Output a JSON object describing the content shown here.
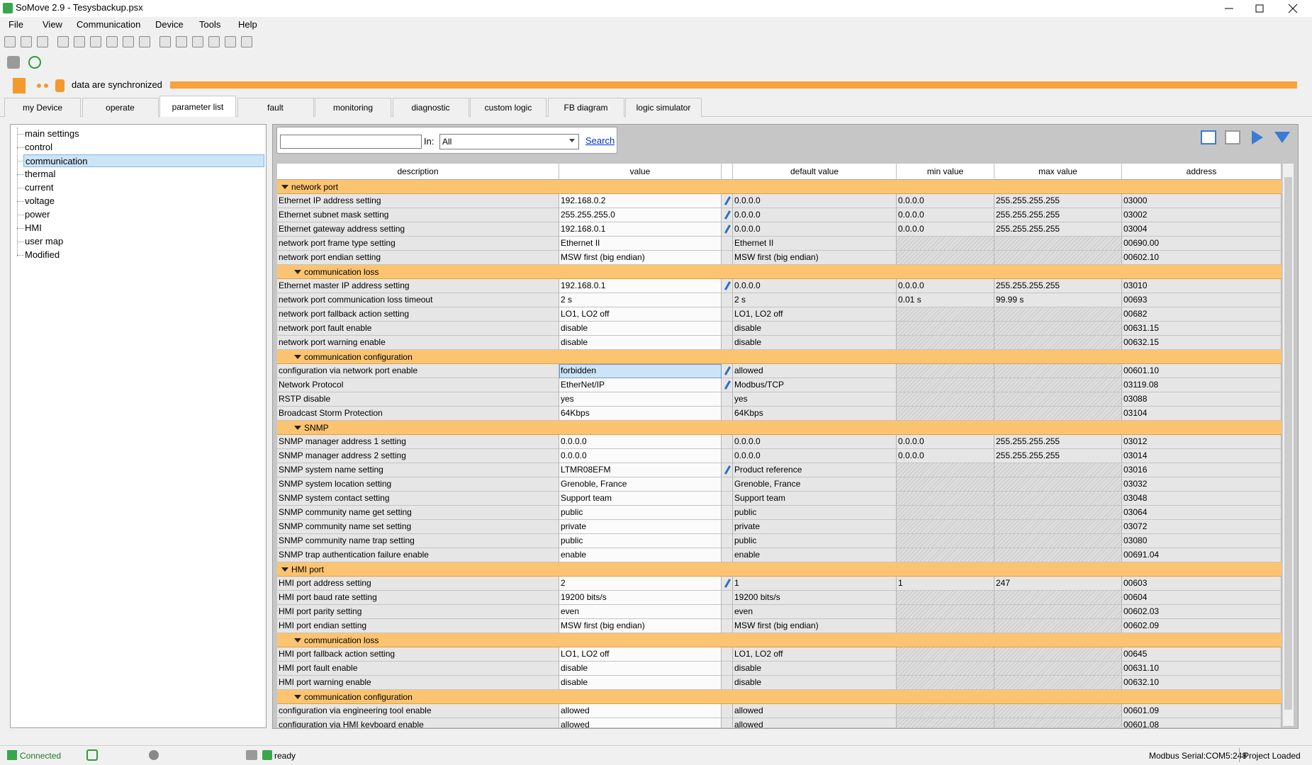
{
  "window": {
    "title": "SoMove 2.9 - Tesysbackup.psx"
  },
  "menu": [
    "File",
    "View",
    "Communication",
    "Device",
    "Tools",
    "Help"
  ],
  "sync": {
    "text": "data are synchronized"
  },
  "tabs": [
    {
      "label": "my Device"
    },
    {
      "label": "operate"
    },
    {
      "label": "parameter list",
      "selected": true
    },
    {
      "label": "fault"
    },
    {
      "label": "monitoring"
    },
    {
      "label": "diagnostic"
    },
    {
      "label": "custom logic"
    },
    {
      "label": "FB diagram"
    },
    {
      "label": "logic simulator"
    }
  ],
  "tree": [
    {
      "label": "main settings"
    },
    {
      "label": "control"
    },
    {
      "label": "communication",
      "selected": true
    },
    {
      "label": "thermal"
    },
    {
      "label": "current"
    },
    {
      "label": "voltage"
    },
    {
      "label": "power"
    },
    {
      "label": "HMI"
    },
    {
      "label": "user map"
    },
    {
      "label": "Modified"
    }
  ],
  "search": {
    "in_label": "In:",
    "in_value": "All",
    "button": "Search"
  },
  "table": {
    "columns": [
      "description",
      "value",
      "default value",
      "min value",
      "max value",
      "address"
    ],
    "rows": [
      {
        "group": "network port",
        "level": 0
      },
      {
        "cells": [
          "Ethernet IP address setting",
          "192.168.0.2",
          "0.0.0.0",
          "0.0.0.0",
          "255.255.255.255",
          "03000"
        ],
        "modified": true
      },
      {
        "cells": [
          "Ethernet subnet mask setting",
          "255.255.255.0",
          "0.0.0.0",
          "0.0.0.0",
          "255.255.255.255",
          "03002"
        ],
        "modified": true
      },
      {
        "cells": [
          "Ethernet gateway address setting",
          "192.168.0.1",
          "0.0.0.0",
          "0.0.0.0",
          "255.255.255.255",
          "03004"
        ],
        "modified": true
      },
      {
        "cells": [
          "network port frame type setting",
          "Ethernet II",
          "Ethernet II",
          null,
          null,
          "00690.00"
        ]
      },
      {
        "cells": [
          "network port endian setting",
          "MSW first (big endian)",
          "MSW first (big endian)",
          null,
          null,
          "00602.10"
        ]
      },
      {
        "group": "communication loss",
        "level": 1
      },
      {
        "cells": [
          "Ethernet master IP address setting",
          "192.168.0.1",
          "0.0.0.0",
          "0.0.0.0",
          "255.255.255.255",
          "03010"
        ],
        "modified": true
      },
      {
        "cells": [
          "network port communication loss timeout",
          "2 s",
          "2 s",
          "0.01 s",
          "99.99 s",
          "00693"
        ]
      },
      {
        "cells": [
          "network port fallback action setting",
          "LO1, LO2 off",
          "LO1, LO2 off",
          null,
          null,
          "00682"
        ]
      },
      {
        "cells": [
          "network port fault enable",
          "disable",
          "disable",
          null,
          null,
          "00631.15"
        ]
      },
      {
        "cells": [
          "network port warning enable",
          "disable",
          "disable",
          null,
          null,
          "00632.15"
        ]
      },
      {
        "group": "communication configuration",
        "level": 1
      },
      {
        "cells": [
          "configuration via network port enable",
          "forbidden",
          "allowed",
          null,
          null,
          "00601.10"
        ],
        "modified": true,
        "selected": true
      },
      {
        "cells": [
          "Network Protocol",
          "EtherNet/IP",
          "Modbus/TCP",
          null,
          null,
          "03119.08"
        ],
        "modified": true
      },
      {
        "cells": [
          "RSTP disable",
          "yes",
          "yes",
          null,
          null,
          "03088"
        ]
      },
      {
        "cells": [
          "Broadcast Storm Protection",
          "64Kbps",
          "64Kbps",
          null,
          null,
          "03104"
        ]
      },
      {
        "group": "SNMP",
        "level": 1
      },
      {
        "cells": [
          "SNMP manager address 1 setting",
          "0.0.0.0",
          "0.0.0.0",
          "0.0.0.0",
          "255.255.255.255",
          "03012"
        ]
      },
      {
        "cells": [
          "SNMP manager address 2 setting",
          "0.0.0.0",
          "0.0.0.0",
          "0.0.0.0",
          "255.255.255.255",
          "03014"
        ]
      },
      {
        "cells": [
          "SNMP system name setting",
          "LTMR08EFM",
          "Product reference",
          null,
          null,
          "03016"
        ],
        "modified": true
      },
      {
        "cells": [
          "SNMP system location setting",
          "Grenoble, France",
          "Grenoble, France",
          null,
          null,
          "03032"
        ]
      },
      {
        "cells": [
          "SNMP system contact setting",
          "Support team",
          "Support team",
          null,
          null,
          "03048"
        ]
      },
      {
        "cells": [
          "SNMP community name get setting",
          "public",
          "public",
          null,
          null,
          "03064"
        ]
      },
      {
        "cells": [
          "SNMP community name set setting",
          "private",
          "private",
          null,
          null,
          "03072"
        ]
      },
      {
        "cells": [
          "SNMP community name trap setting",
          "public",
          "public",
          null,
          null,
          "03080"
        ]
      },
      {
        "cells": [
          "SNMP trap authentication failure enable",
          "enable",
          "enable",
          null,
          null,
          "00691.04"
        ]
      },
      {
        "group": "HMI port",
        "level": 0
      },
      {
        "cells": [
          "HMI port address setting",
          "2",
          "1",
          "1",
          "247",
          "00603"
        ],
        "modified": true
      },
      {
        "cells": [
          "HMI port baud rate setting",
          "19200 bits/s",
          "19200 bits/s",
          null,
          null,
          "00604"
        ]
      },
      {
        "cells": [
          "HMI port parity setting",
          "even",
          "even",
          null,
          null,
          "00602.03"
        ]
      },
      {
        "cells": [
          "HMI port endian setting",
          "MSW first (big endian)",
          "MSW first (big endian)",
          null,
          null,
          "00602.09"
        ]
      },
      {
        "group": "communication loss",
        "level": 1
      },
      {
        "cells": [
          "HMI port fallback action setting",
          "LO1, LO2 off",
          "LO1, LO2 off",
          null,
          null,
          "00645"
        ]
      },
      {
        "cells": [
          "HMI port fault enable",
          "disable",
          "disable",
          null,
          null,
          "00631.10"
        ]
      },
      {
        "cells": [
          "HMI port warning enable",
          "disable",
          "disable",
          null,
          null,
          "00632.10"
        ]
      },
      {
        "group": "communication configuration",
        "level": 1
      },
      {
        "cells": [
          "configuration via engineering tool enable",
          "allowed",
          "allowed",
          null,
          null,
          "00601.09"
        ]
      },
      {
        "cells": [
          "configuration via HMI keyboard enable",
          "allowed",
          "allowed",
          null,
          null,
          "00601.08"
        ]
      }
    ]
  },
  "status_bar": {
    "connection": "Connected",
    "state": "ready",
    "port": "Modbus Serial:COM5:248",
    "project": "Project Loaded"
  }
}
